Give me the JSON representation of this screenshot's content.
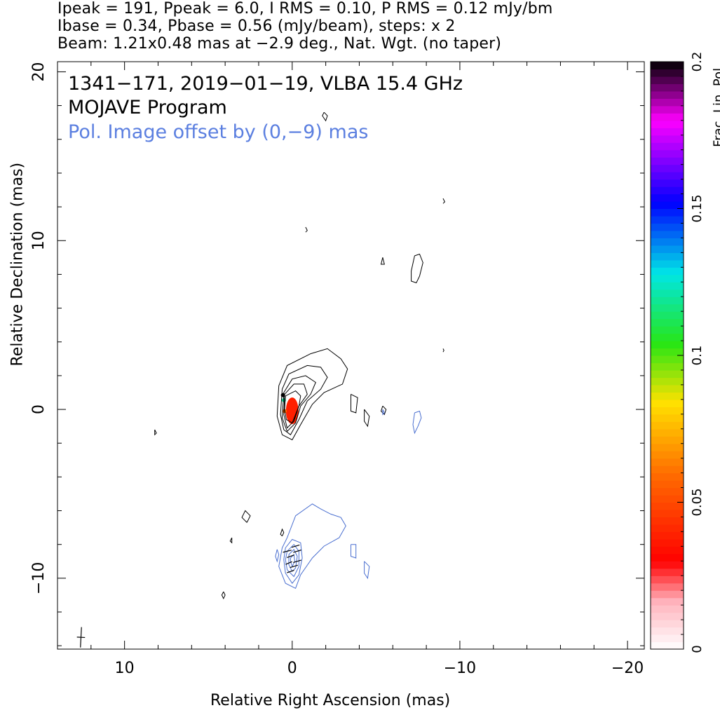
{
  "header": {
    "line1": "Ipeak = 191, Ppeak = 6.0, I RMS = 0.10, P RMS = 0.12 mJy/bm",
    "line2": "Ibase = 0.34, Pbase = 0.56 (mJy/beam), steps: x 2",
    "line3": "Beam: 1.21x0.48 mas at −2.9 deg., Nat. Wgt. (no taper)"
  },
  "annotations": {
    "title": "1341−171, 2019−01−19, VLBA 15.4 GHz",
    "program": "MOJAVE Program",
    "offset_note": "Pol. Image offset by (0,−9) mas"
  },
  "colors": {
    "total_intensity_contour": "#000000",
    "polarization_contour": "#4a6fd0",
    "offset_note_text": "#5b7fe0",
    "core_fill": "#ff2000"
  },
  "chart_data": {
    "type": "contour",
    "xlabel": "Relative Right Ascension (mas)",
    "ylabel": "Relative Declination (mas)",
    "xlim": [
      14,
      -21
    ],
    "ylim": [
      -14.2,
      20.6
    ],
    "xticks": [
      10,
      0,
      -10,
      -20
    ],
    "xtick_labels": [
      "10",
      "0",
      "−10",
      "−20"
    ],
    "yticks": [
      -10,
      0,
      10,
      20
    ],
    "ytick_labels": [
      "−10",
      "0",
      "10",
      "20"
    ],
    "colorbar": {
      "label": "Frac. Lin. Pol.",
      "min": 0,
      "max": 0.2,
      "ticks": [
        0,
        0.05,
        0.1,
        0.15,
        0.2
      ],
      "tick_labels": [
        "0",
        "0.05",
        "0.1",
        "0.15",
        "0.2"
      ]
    },
    "core": {
      "ra": 0,
      "dec": 0
    },
    "stokes_i_contours": [
      [
        [
          0.8,
          1.4
        ],
        [
          0.3,
          2.6
        ],
        [
          -1.1,
          3.3
        ],
        [
          -2.1,
          3.6
        ],
        [
          -2.9,
          3.0
        ],
        [
          -3.3,
          2.4
        ],
        [
          -3.0,
          1.5
        ],
        [
          -1.9,
          1.0
        ],
        [
          -1.2,
          0.3
        ],
        [
          -0.5,
          -0.9
        ],
        [
          0.0,
          -1.8
        ],
        [
          0.6,
          -1.5
        ],
        [
          0.9,
          -0.4
        ],
        [
          0.8,
          1.4
        ]
      ],
      [
        [
          0.6,
          1.2
        ],
        [
          0.2,
          2.1
        ],
        [
          -0.9,
          2.6
        ],
        [
          -1.7,
          2.5
        ],
        [
          -2.1,
          1.9
        ],
        [
          -1.7,
          1.2
        ],
        [
          -0.9,
          0.5
        ],
        [
          -0.4,
          -0.6
        ],
        [
          0.1,
          -1.5
        ],
        [
          0.5,
          -1.2
        ],
        [
          0.7,
          -0.3
        ],
        [
          0.6,
          1.2
        ]
      ],
      [
        [
          0.5,
          1.0
        ],
        [
          0.0,
          1.8
        ],
        [
          -0.8,
          2.0
        ],
        [
          -1.4,
          1.6
        ],
        [
          -1.1,
          0.9
        ],
        [
          -0.5,
          0.2
        ],
        [
          -0.2,
          -0.8
        ],
        [
          0.3,
          -1.3
        ],
        [
          0.6,
          -0.5
        ],
        [
          0.5,
          1.0
        ]
      ],
      [
        [
          0.45,
          0.9
        ],
        [
          -0.1,
          1.5
        ],
        [
          -0.7,
          1.5
        ],
        [
          -0.9,
          0.9
        ],
        [
          -0.4,
          0.2
        ],
        [
          -0.1,
          -0.7
        ],
        [
          0.3,
          -1.1
        ],
        [
          0.5,
          -0.3
        ],
        [
          0.45,
          0.9
        ]
      ],
      [
        [
          0.4,
          0.8
        ],
        [
          -0.2,
          1.1
        ],
        [
          -0.5,
          0.8
        ],
        [
          -0.4,
          0.2
        ],
        [
          0.0,
          -0.8
        ],
        [
          0.35,
          -0.6
        ],
        [
          0.45,
          0.0
        ],
        [
          0.4,
          0.8
        ]
      ],
      [
        [
          -3.5,
          0.9
        ],
        [
          -3.9,
          0.7
        ],
        [
          -3.8,
          -0.2
        ],
        [
          -3.5,
          -0.1
        ],
        [
          -3.5,
          0.9
        ]
      ],
      [
        [
          -4.3,
          0.0
        ],
        [
          -4.6,
          -0.4
        ],
        [
          -4.5,
          -1.0
        ],
        [
          -4.3,
          -0.7
        ],
        [
          -4.3,
          0.0
        ]
      ],
      [
        [
          -5.4,
          0.2
        ],
        [
          -5.6,
          0.0
        ],
        [
          -5.5,
          -0.3
        ],
        [
          -5.3,
          -0.1
        ],
        [
          -5.4,
          0.2
        ]
      ],
      [
        [
          -7.3,
          9.1
        ],
        [
          -7.6,
          9.2
        ],
        [
          -7.8,
          8.7
        ],
        [
          -7.6,
          7.9
        ],
        [
          -7.4,
          7.5
        ],
        [
          -7.1,
          7.6
        ],
        [
          -7.1,
          8.2
        ],
        [
          -7.3,
          9.1
        ]
      ],
      [
        [
          -5.4,
          9.0
        ],
        [
          -5.5,
          8.6
        ],
        [
          -5.3,
          8.6
        ],
        [
          -5.4,
          9.0
        ]
      ],
      [
        [
          -1.9,
          17.6
        ],
        [
          -2.1,
          17.4
        ],
        [
          -2.0,
          17.1
        ],
        [
          -1.8,
          17.4
        ],
        [
          -1.9,
          17.6
        ]
      ],
      [
        [
          -0.8,
          10.8
        ],
        [
          -0.9,
          10.6
        ],
        [
          -0.8,
          10.5
        ]
      ],
      [
        [
          -9.0,
          12.5
        ],
        [
          -9.1,
          12.3
        ],
        [
          -9.0,
          12.2
        ]
      ],
      [
        [
          -9.0,
          3.6
        ],
        [
          -9.05,
          3.5
        ],
        [
          -9.0,
          3.4
        ]
      ],
      [
        [
          8.2,
          -1.2
        ],
        [
          8.1,
          -1.4
        ],
        [
          8.2,
          -1.5
        ],
        [
          8.2,
          -1.2
        ]
      ],
      [
        [
          2.7,
          -6.7
        ],
        [
          2.5,
          -6.3
        ],
        [
          2.8,
          -6.0
        ],
        [
          3.0,
          -6.4
        ],
        [
          2.7,
          -6.7
        ]
      ],
      [
        [
          3.6,
          -7.6
        ],
        [
          3.6,
          -7.9
        ],
        [
          3.7,
          -7.8
        ],
        [
          3.6,
          -7.6
        ]
      ],
      [
        [
          0.6,
          -7.5
        ],
        [
          0.5,
          -7.3
        ],
        [
          0.6,
          -7.1
        ],
        [
          0.7,
          -7.4
        ],
        [
          0.6,
          -7.5
        ]
      ],
      [
        [
          4.1,
          -10.8
        ],
        [
          4.0,
          -11.0
        ],
        [
          4.1,
          -11.2
        ],
        [
          4.2,
          -11.0
        ],
        [
          4.1,
          -10.8
        ]
      ]
    ],
    "pol_contours": [
      [
        [
          0.3,
          -7.6
        ],
        [
          -0.2,
          -6.3
        ],
        [
          -1.2,
          -5.6
        ],
        [
          -1.7,
          -5.9
        ],
        [
          -2.3,
          -6.2
        ],
        [
          -2.9,
          -6.4
        ],
        [
          -3.2,
          -6.9
        ],
        [
          -2.8,
          -7.6
        ],
        [
          -1.9,
          -8.1
        ],
        [
          -1.2,
          -8.8
        ],
        [
          -0.5,
          -9.8
        ],
        [
          -0.2,
          -10.6
        ],
        [
          0.4,
          -10.3
        ],
        [
          0.8,
          -9.3
        ],
        [
          0.6,
          -8.2
        ],
        [
          0.3,
          -7.6
        ]
      ],
      [
        [
          0.4,
          -8.2
        ],
        [
          0.0,
          -7.7
        ],
        [
          -0.5,
          -7.9
        ],
        [
          -0.6,
          -8.8
        ],
        [
          -0.4,
          -9.8
        ],
        [
          0.0,
          -10.3
        ],
        [
          0.4,
          -9.7
        ],
        [
          0.5,
          -8.9
        ],
        [
          0.4,
          -8.2
        ]
      ],
      [
        [
          0.3,
          -8.4
        ],
        [
          -0.1,
          -8.0
        ],
        [
          -0.4,
          -8.4
        ],
        [
          -0.4,
          -9.3
        ],
        [
          -0.1,
          -9.9
        ],
        [
          0.3,
          -9.5
        ],
        [
          0.4,
          -8.9
        ],
        [
          0.3,
          -8.4
        ]
      ],
      [
        [
          0.2,
          -8.6
        ],
        [
          -0.1,
          -8.3
        ],
        [
          -0.3,
          -8.7
        ],
        [
          -0.2,
          -9.4
        ],
        [
          0.0,
          -9.6
        ],
        [
          0.2,
          -9.2
        ],
        [
          0.2,
          -8.6
        ]
      ],
      [
        [
          0.1,
          -8.8
        ],
        [
          -0.1,
          -8.6
        ],
        [
          -0.15,
          -9.0
        ],
        [
          0.0,
          -9.3
        ],
        [
          0.1,
          -9.0
        ],
        [
          0.1,
          -8.8
        ]
      ],
      [
        [
          0.9,
          -8.3
        ],
        [
          0.8,
          -8.6
        ],
        [
          0.9,
          -9.0
        ],
        [
          1.0,
          -8.7
        ],
        [
          0.9,
          -8.3
        ]
      ],
      [
        [
          -3.5,
          -8.0
        ],
        [
          -3.8,
          -8.0
        ],
        [
          -3.8,
          -8.8
        ],
        [
          -3.5,
          -8.7
        ],
        [
          -3.5,
          -8.0
        ]
      ],
      [
        [
          -4.3,
          -9.0
        ],
        [
          -4.6,
          -9.3
        ],
        [
          -4.5,
          -10.0
        ],
        [
          -4.3,
          -9.7
        ],
        [
          -4.3,
          -9.0
        ]
      ],
      [
        [
          -7.3,
          -0.2
        ],
        [
          -7.6,
          -0.1
        ],
        [
          -7.7,
          -0.5
        ],
        [
          -7.5,
          -1.0
        ],
        [
          -7.3,
          -1.4
        ],
        [
          -7.2,
          -0.9
        ],
        [
          -7.3,
          -0.2
        ]
      ],
      [
        [
          -5.4,
          0.0
        ],
        [
          -5.5,
          -0.2
        ],
        [
          -5.4,
          -0.3
        ],
        [
          -5.4,
          0.0
        ]
      ]
    ],
    "evpa_vectors": [
      [
        -0.3,
        -8.4,
        45
      ],
      [
        0.1,
        -8.7,
        40
      ],
      [
        0.2,
        -9.1,
        35
      ],
      [
        -0.1,
        -9.3,
        45
      ],
      [
        0.1,
        -9.6,
        40
      ],
      [
        -0.3,
        -9.0,
        45
      ],
      [
        0.3,
        -8.4,
        50
      ],
      [
        -0.2,
        -8.1,
        45
      ]
    ],
    "fractional_pol_markers": [
      {
        "ra": 0.55,
        "dec": 0.85,
        "frac": 0.2
      },
      {
        "ra": 0.5,
        "dec": 0.55,
        "frac": 0.12
      },
      {
        "ra": 0.45,
        "dec": -0.1,
        "frac": 0.06
      }
    ],
    "beam": {
      "ra": 12.6,
      "dec": -13.5,
      "major_mas": 1.21,
      "minor_mas": 0.48,
      "pa_deg": -2.9
    }
  }
}
